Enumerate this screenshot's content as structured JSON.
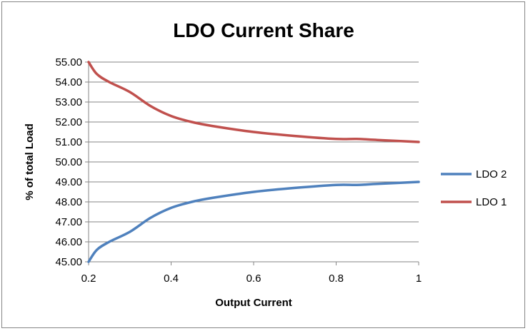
{
  "chart_data": {
    "type": "line",
    "title": "LDO Current Share",
    "xlabel": "Output Current",
    "ylabel": "% of total Load",
    "xlim": [
      0.2,
      1
    ],
    "ylim": [
      45,
      55
    ],
    "x_ticks": [
      0.2,
      0.4,
      0.6,
      0.8,
      1
    ],
    "x_tick_labels": [
      "0.2",
      "0.4",
      "0.6",
      "0.8",
      "1"
    ],
    "y_ticks": [
      45,
      46,
      47,
      48,
      49,
      50,
      51,
      52,
      53,
      54,
      55
    ],
    "y_tick_labels": [
      "45.00",
      "46.00",
      "47.00",
      "48.00",
      "49.00",
      "50.00",
      "51.00",
      "52.00",
      "53.00",
      "54.00",
      "55.00"
    ],
    "grid": "horizontal",
    "legend_position": "right",
    "series": [
      {
        "name": "LDO 2",
        "color": "#4F81BD",
        "x": [
          0.2,
          0.22,
          0.25,
          0.3,
          0.35,
          0.4,
          0.45,
          0.5,
          0.6,
          0.7,
          0.8,
          0.85,
          0.9,
          1.0
        ],
        "y": [
          45.0,
          45.6,
          46.0,
          46.5,
          47.2,
          47.7,
          48.0,
          48.2,
          48.5,
          48.7,
          48.85,
          48.85,
          48.9,
          49.0
        ]
      },
      {
        "name": "LDO 1",
        "color": "#C0504D",
        "x": [
          0.2,
          0.22,
          0.25,
          0.3,
          0.35,
          0.4,
          0.45,
          0.5,
          0.6,
          0.7,
          0.8,
          0.85,
          0.9,
          1.0
        ],
        "y": [
          55.0,
          54.4,
          54.0,
          53.5,
          52.8,
          52.3,
          52.0,
          51.8,
          51.5,
          51.3,
          51.15,
          51.15,
          51.1,
          51.0
        ]
      }
    ]
  }
}
